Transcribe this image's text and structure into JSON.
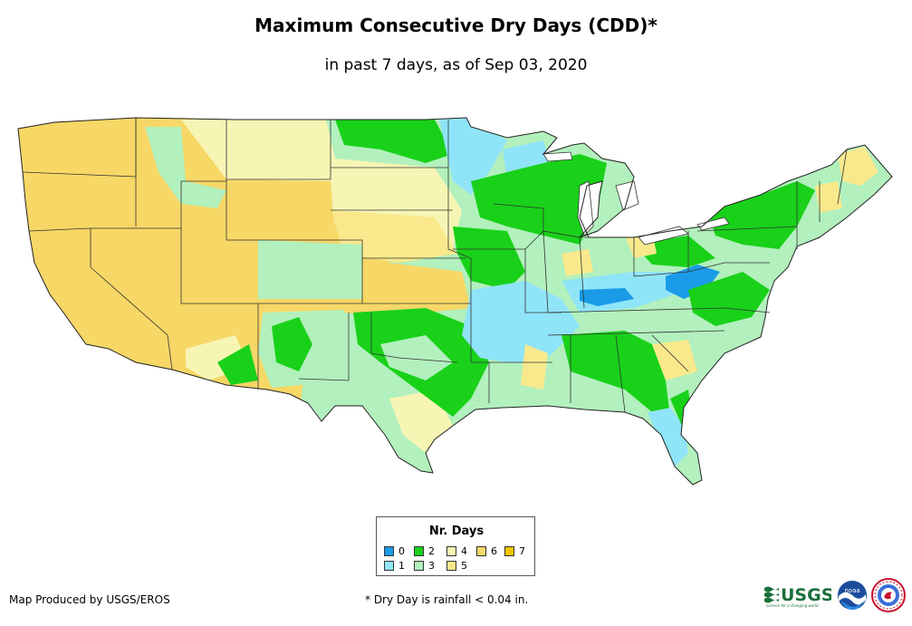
{
  "title": "Maximum Consecutive Dry Days (CDD)*",
  "subtitle": "in past 7 days, as of Sep 03, 2020",
  "legend": {
    "title": "Nr. Days",
    "items": [
      {
        "label": "0",
        "color": "#1a9be8"
      },
      {
        "label": "1",
        "color": "#8fe4f8"
      },
      {
        "label": "2",
        "color": "#19d119"
      },
      {
        "label": "3",
        "color": "#b2f0bd"
      },
      {
        "label": "4",
        "color": "#f7f5b4"
      },
      {
        "label": "5",
        "color": "#f9e98c"
      },
      {
        "label": "6",
        "color": "#f7d766"
      },
      {
        "label": "7",
        "color": "#f4c300"
      }
    ]
  },
  "credit": "Map Produced by USGS/EROS",
  "footnote": "* Dry Day is rainfall < 0.04 in.",
  "logos": {
    "usgs": "USGS",
    "usgs_tagline": "science for a changing world",
    "noaa": "noaa"
  },
  "colors": {
    "cdd0": "#1a9be8",
    "cdd1": "#8fe4f8",
    "cdd2": "#19d119",
    "cdd3": "#b2f0bd",
    "cdd4": "#f7f5b4",
    "cdd5": "#f9e98c",
    "cdd6": "#f7d766",
    "cdd7": "#f4c300"
  }
}
